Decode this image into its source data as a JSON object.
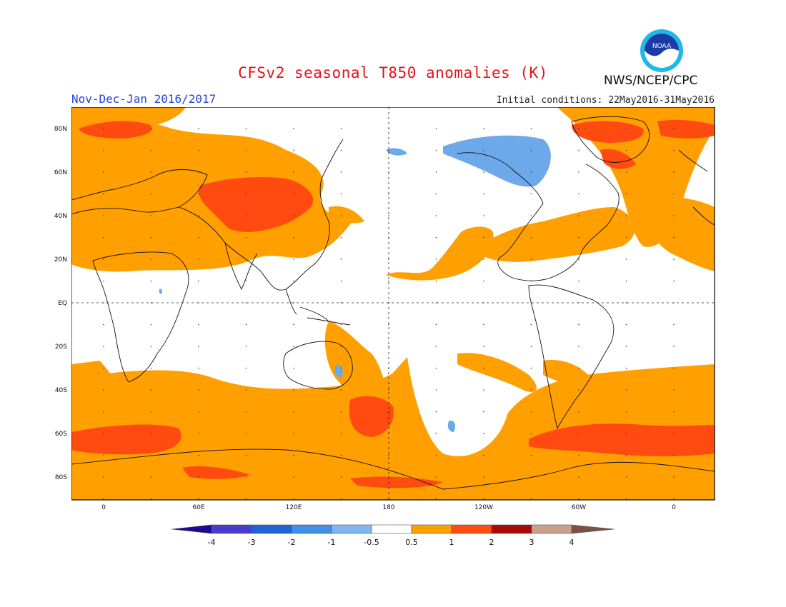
{
  "title": "CFSv2 seasonal T850 anomalies (K)",
  "period": "Nov-Dec-Jan 2016/2017",
  "initial_conditions": "Initial conditions: 22May2016-31May2016",
  "org": "NWS/NCEP/CPC",
  "logo_text": "NOAA",
  "lat_labels": [
    "80N",
    "60N",
    "40N",
    "20N",
    "EQ",
    "20S",
    "40S",
    "60S",
    "80S"
  ],
  "lon_labels": [
    "0",
    "60E",
    "120E",
    "180",
    "120W",
    "60W",
    "0"
  ],
  "colorbar": {
    "labels": [
      "-4",
      "-3",
      "-2",
      "-1",
      "-0.5",
      "0.5",
      "1",
      "2",
      "3",
      "4"
    ],
    "colors": [
      "#1a0a8c",
      "#4a3bd0",
      "#1f63d6",
      "#3f8fe8",
      "#7fb6f0",
      "#ffffff",
      "#ff9f00",
      "#ff4a10",
      "#a80a0a",
      "#c9a08a",
      "#7a5245"
    ]
  },
  "colors": {
    "warm_1": "#ff9f00",
    "warm_2": "#ff4a10",
    "warm_3": "#e0301a",
    "cool_1": "#6ca8ea",
    "land_line": "#111111"
  }
}
